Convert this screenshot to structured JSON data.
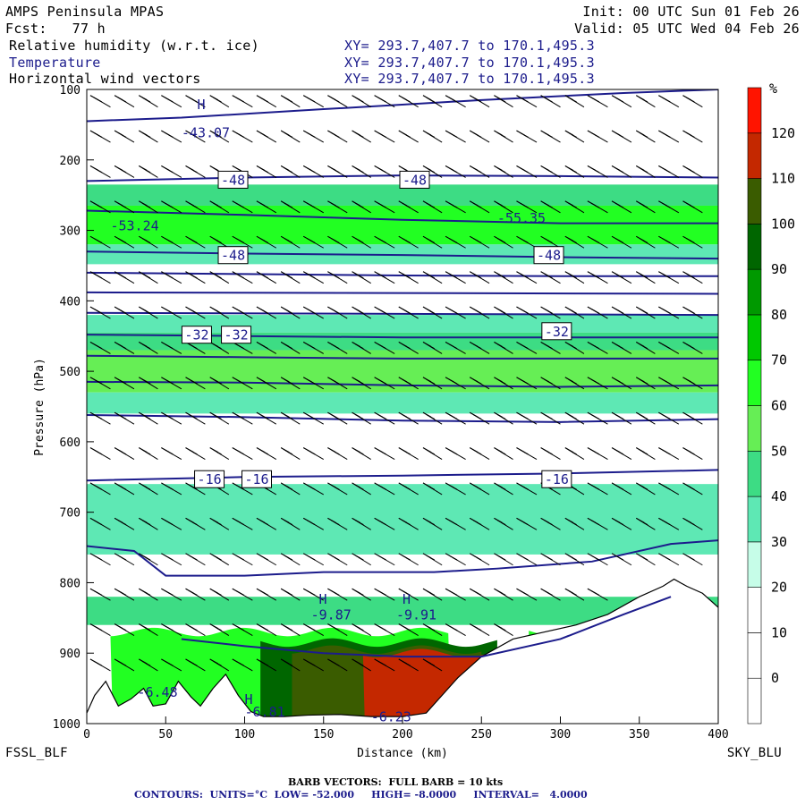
{
  "header": {
    "model": "AMPS Peninsula MPAS",
    "init": "Init: 00 UTC Sun 01 Feb 26",
    "fcst": "Fcst:   77 h",
    "valid": "Valid: 05 UTC Wed 04 Feb 26",
    "fields": [
      {
        "name": "Relative humidity (w.r.t. ice)",
        "xy": "XY= 293.7,407.7 to 170.1,495.3"
      },
      {
        "name": "Temperature",
        "xy": "XY= 293.7,407.7 to 170.1,495.3"
      },
      {
        "name": "Horizontal wind vectors",
        "xy": "XY= 293.7,407.7 to 170.1,495.3"
      }
    ]
  },
  "footer": {
    "left_station": "FSSL_BLF",
    "right_station": "SKY_BLU",
    "barb_note": "BARB VECTORS:  FULL BARB = 10 kts",
    "contour_note": "CONTOURS:  UNITS=°C  LOW= -52.000     HIGH= -8.0000     INTERVAL=   4.0000"
  },
  "colors": {
    "contour": "#1c1c8c",
    "terrain": "#ffffff"
  },
  "chart_data": {
    "type": "heatmap",
    "title": "Cross-section: Relative humidity (w.r.t. ice), Temperature, Horizontal wind vectors",
    "xlabel": "Distance (km)",
    "ylabel": "Pressure (hPa)",
    "xlim": [
      0,
      400
    ],
    "ylim": [
      1000,
      100
    ],
    "x_ticks": [
      0,
      50,
      100,
      150,
      200,
      250,
      300,
      350,
      400
    ],
    "y_ticks": [
      100,
      200,
      300,
      400,
      500,
      600,
      700,
      800,
      900,
      1000
    ],
    "colorbar": {
      "unit": "%",
      "levels": [
        0,
        10,
        20,
        30,
        40,
        50,
        60,
        70,
        80,
        90,
        100,
        110,
        120
      ],
      "colors": [
        "#ffffff",
        "#ffffff",
        "#ffffff",
        "#c6fde8",
        "#5ee8b4",
        "#3ddc84",
        "#66ee55",
        "#22ff22",
        "#00c800",
        "#009900",
        "#006600",
        "#3a5c00",
        "#c42800",
        "#ff1400"
      ]
    },
    "rh_bands": [
      {
        "p_top": 235,
        "p_bot": 265,
        "value": 45
      },
      {
        "p_top": 265,
        "p_bot": 320,
        "value": 62
      },
      {
        "p_top": 320,
        "p_bot": 348,
        "value": 35
      },
      {
        "p_top": 420,
        "p_bot": 445,
        "value": 33
      },
      {
        "p_top": 445,
        "p_bot": 470,
        "value": 45
      },
      {
        "p_top": 470,
        "p_bot": 530,
        "value": 52
      },
      {
        "p_top": 530,
        "p_bot": 560,
        "value": 38
      },
      {
        "p_top": 660,
        "p_bot": 760,
        "value": 33
      },
      {
        "p_top": 820,
        "p_bot": 860,
        "value": 45
      }
    ],
    "terrain_pressure": [
      [
        0,
        985
      ],
      [
        5,
        960
      ],
      [
        12,
        940
      ],
      [
        20,
        975
      ],
      [
        28,
        965
      ],
      [
        36,
        950
      ],
      [
        42,
        975
      ],
      [
        50,
        972
      ],
      [
        58,
        940
      ],
      [
        66,
        962
      ],
      [
        72,
        975
      ],
      [
        80,
        950
      ],
      [
        88,
        930
      ],
      [
        96,
        960
      ],
      [
        104,
        983
      ],
      [
        112,
        990
      ],
      [
        125,
        990
      ],
      [
        140,
        988
      ],
      [
        160,
        987
      ],
      [
        180,
        990
      ],
      [
        200,
        990
      ],
      [
        215,
        985
      ],
      [
        225,
        960
      ],
      [
        235,
        935
      ],
      [
        250,
        905
      ],
      [
        270,
        880
      ],
      [
        290,
        870
      ],
      [
        310,
        860
      ],
      [
        330,
        845
      ],
      [
        350,
        820
      ],
      [
        365,
        805
      ],
      [
        372,
        795
      ],
      [
        380,
        805
      ],
      [
        390,
        815
      ],
      [
        400,
        835
      ]
    ],
    "moist_layer": [
      {
        "x0": 15,
        "x1": 230,
        "p_top": 870,
        "value": 62
      },
      {
        "x0": 110,
        "x1": 260,
        "p_top": 885,
        "value": 90
      },
      {
        "x0": 130,
        "x1": 250,
        "p_top": 895,
        "value": 105
      },
      {
        "x0": 175,
        "x1": 320,
        "p_top": 900,
        "value": 118
      },
      {
        "x0": 280,
        "x1": 360,
        "p_top": 870,
        "value": 60
      }
    ],
    "temperature_contours": [
      {
        "level": -44,
        "points": [
          [
            0,
            145
          ],
          [
            60,
            140
          ],
          [
            150,
            128
          ],
          [
            250,
            115
          ],
          [
            340,
            105
          ],
          [
            400,
            100
          ]
        ]
      },
      {
        "level": -48,
        "points": [
          [
            0,
            230
          ],
          [
            100,
            225
          ],
          [
            200,
            222
          ],
          [
            300,
            223
          ],
          [
            400,
            225
          ]
        ]
      },
      {
        "level": -52,
        "points": [
          [
            0,
            272
          ],
          [
            100,
            278
          ],
          [
            200,
            285
          ],
          [
            300,
            290
          ],
          [
            400,
            290
          ]
        ]
      },
      {
        "level": -48,
        "points": [
          [
            0,
            330
          ],
          [
            100,
            333
          ],
          [
            200,
            335
          ],
          [
            300,
            338
          ],
          [
            400,
            340
          ]
        ]
      },
      {
        "level": -44,
        "points": [
          [
            0,
            360
          ],
          [
            100,
            362
          ],
          [
            200,
            364
          ],
          [
            300,
            365
          ],
          [
            400,
            365
          ]
        ]
      },
      {
        "level": -40,
        "points": [
          [
            0,
            388
          ],
          [
            400,
            390
          ]
        ]
      },
      {
        "level": -36,
        "points": [
          [
            0,
            417
          ],
          [
            400,
            420
          ]
        ]
      },
      {
        "level": -32,
        "points": [
          [
            0,
            448
          ],
          [
            100,
            450
          ],
          [
            200,
            452
          ],
          [
            300,
            452
          ],
          [
            400,
            452
          ]
        ]
      },
      {
        "level": -28,
        "points": [
          [
            0,
            478
          ],
          [
            100,
            480
          ],
          [
            200,
            482
          ],
          [
            400,
            482
          ]
        ]
      },
      {
        "level": -24,
        "points": [
          [
            0,
            515
          ],
          [
            100,
            516
          ],
          [
            200,
            520
          ],
          [
            300,
            522
          ],
          [
            400,
            520
          ]
        ]
      },
      {
        "level": -20,
        "points": [
          [
            0,
            562
          ],
          [
            100,
            565
          ],
          [
            200,
            570
          ],
          [
            300,
            572
          ],
          [
            400,
            568
          ]
        ]
      },
      {
        "level": -16,
        "points": [
          [
            0,
            655
          ],
          [
            100,
            650
          ],
          [
            200,
            648
          ],
          [
            300,
            645
          ],
          [
            400,
            640
          ]
        ]
      },
      {
        "level": -12,
        "points": [
          [
            0,
            748
          ],
          [
            30,
            755
          ],
          [
            50,
            790
          ],
          [
            100,
            790
          ],
          [
            150,
            785
          ],
          [
            220,
            785
          ],
          [
            260,
            780
          ],
          [
            320,
            770
          ],
          [
            370,
            745
          ],
          [
            400,
            740
          ]
        ]
      },
      {
        "level": -8,
        "points": [
          [
            60,
            880
          ],
          [
            100,
            890
          ],
          [
            150,
            900
          ],
          [
            200,
            905
          ],
          [
            250,
            905
          ],
          [
            300,
            880
          ],
          [
            340,
            845
          ],
          [
            370,
            820
          ]
        ]
      }
    ],
    "contour_labels": [
      {
        "text": "-43.07",
        "x": 60,
        "p": 163
      },
      {
        "text": "-48",
        "x": 85,
        "p": 230
      },
      {
        "text": "-48",
        "x": 200,
        "p": 230
      },
      {
        "text": "-53.24",
        "x": 15,
        "p": 295
      },
      {
        "text": "-55.35",
        "x": 260,
        "p": 284
      },
      {
        "text": "-48",
        "x": 85,
        "p": 337
      },
      {
        "text": "-48",
        "x": 285,
        "p": 337
      },
      {
        "text": "-32",
        "x": 62,
        "p": 450
      },
      {
        "text": "-32",
        "x": 87,
        "p": 450
      },
      {
        "text": "-32",
        "x": 290,
        "p": 445
      },
      {
        "text": "-16",
        "x": 70,
        "p": 655
      },
      {
        "text": "-16",
        "x": 100,
        "p": 655
      },
      {
        "text": "-16",
        "x": 290,
        "p": 655
      },
      {
        "text": "-9.87",
        "x": 142,
        "p": 847
      },
      {
        "text": "-9.91",
        "x": 196,
        "p": 847
      },
      {
        "text": "-6.48",
        "x": 32,
        "p": 957
      },
      {
        "text": "-6.81",
        "x": 100,
        "p": 985
      },
      {
        "text": "-6.23",
        "x": 180,
        "p": 992
      }
    ],
    "high_markers": [
      {
        "text": "H",
        "x": 70,
        "p": 128
      },
      {
        "text": "H",
        "x": 147,
        "p": 830
      },
      {
        "text": "H",
        "x": 200,
        "p": 830
      },
      {
        "text": "H",
        "x": 100,
        "p": 972
      }
    ],
    "wind_barbs": {
      "columns_x": [
        15,
        30,
        45,
        60,
        75,
        90,
        105,
        120,
        135,
        150,
        165,
        180,
        195,
        210,
        225,
        240,
        255,
        270,
        285,
        300,
        315,
        330,
        345,
        360,
        375,
        390
      ],
      "pressure_levels": [
        125,
        175,
        225,
        275,
        325,
        375,
        425,
        475,
        525,
        575,
        625,
        675,
        725,
        775,
        825,
        875,
        925
      ],
      "direction_deg": 300,
      "speed_kts": 25
    }
  }
}
